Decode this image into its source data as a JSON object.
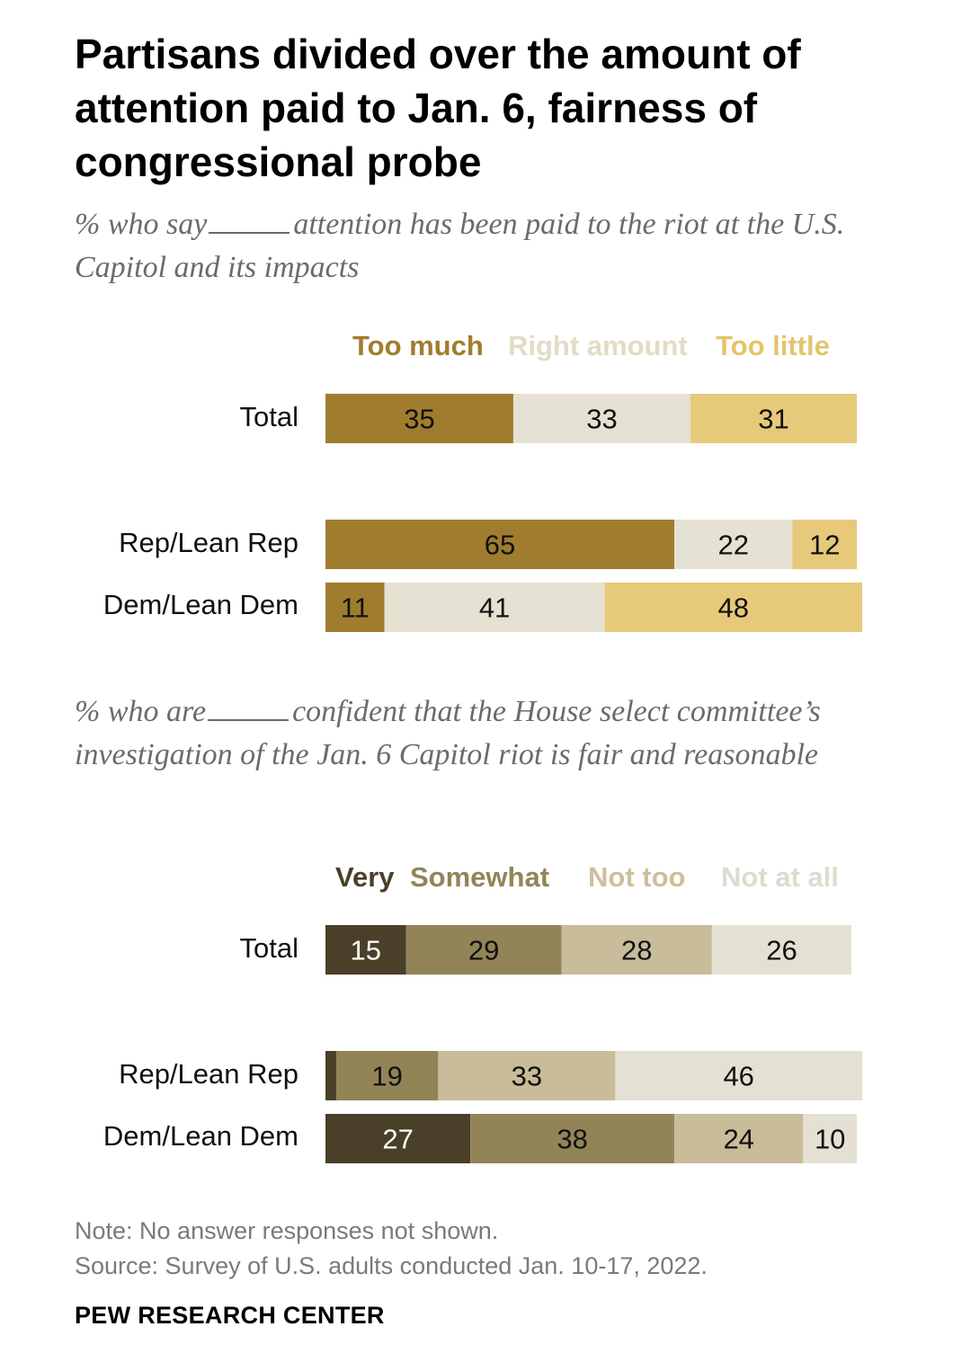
{
  "title": "Partisans divided over the amount of attention paid to Jan. 6, fairness of congressional probe",
  "source_brand": "PEW RESEARCH CENTER",
  "note": "Note: No answer responses not shown.",
  "source": "Source: Survey of U.S. adults conducted Jan. 10-17, 2022.",
  "chart_data": [
    {
      "type": "bar",
      "stacked": true,
      "orientation": "horizontal",
      "subtitle_before": "% who say",
      "subtitle_after": "attention has been paid to the riot at the U.S. Capitol and its impacts",
      "categories": [
        "Total",
        "Rep/Lean Rep",
        "Dem/Lean Dem"
      ],
      "series": [
        {
          "name": "Too much",
          "color": "#a07d2e",
          "label_color": "#a07d2e",
          "values": [
            35,
            65,
            11
          ]
        },
        {
          "name": "Right amount",
          "color": "#e5e1d3",
          "label_color": "#e2dcc6",
          "values": [
            33,
            22,
            41
          ]
        },
        {
          "name": "Too little",
          "color": "#e7c97a",
          "label_color": "#e4c46c",
          "values": [
            31,
            12,
            48
          ]
        }
      ],
      "xlim": [
        0,
        100
      ]
    },
    {
      "type": "bar",
      "stacked": true,
      "orientation": "horizontal",
      "subtitle_before": "% who are",
      "subtitle_after": "confident that the House select committee’s investigation of the Jan. 6 Capitol riot is fair and reasonable",
      "categories": [
        "Total",
        "Rep/Lean Rep",
        "Dem/Lean Dem"
      ],
      "series": [
        {
          "name": "Very",
          "color": "#4a3f28",
          "label_color": "#4a3f28",
          "values": [
            15,
            2,
            27
          ]
        },
        {
          "name": "Somewhat",
          "color": "#938458",
          "label_color": "#938458",
          "values": [
            29,
            19,
            38
          ]
        },
        {
          "name": "Not too",
          "color": "#c8bc9a",
          "label_color": "#cdbf9a",
          "values": [
            28,
            33,
            24
          ]
        },
        {
          "name": "Not at all",
          "color": "#e4e1d4",
          "label_color": "#dedbd0",
          "values": [
            26,
            46,
            10
          ]
        }
      ],
      "value_labels": [
        [
          "15",
          "29",
          "28",
          "26"
        ],
        [
          "",
          "19",
          "33",
          "46"
        ],
        [
          "27",
          "38",
          "24",
          "10"
        ]
      ],
      "xlim": [
        0,
        100
      ]
    }
  ]
}
